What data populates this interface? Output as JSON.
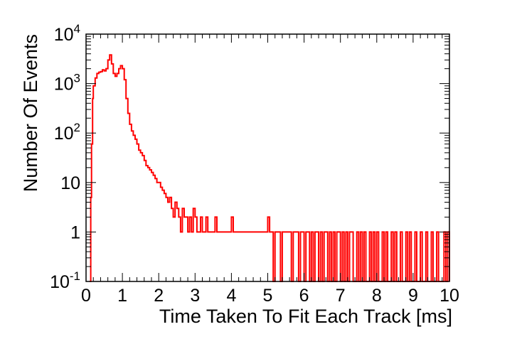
{
  "chart_data": {
    "type": "histogram",
    "title": "",
    "xlabel": "Time Taken To Fit Each Track [ms]",
    "ylabel": "Number Of Events",
    "xlim": [
      0,
      10
    ],
    "ylim": [
      0.1,
      10000
    ],
    "yscale": "log",
    "grid": false,
    "legend": "none",
    "line_color": "#ff0000",
    "x_ticks": [
      {
        "value": 0,
        "label": "0"
      },
      {
        "value": 1,
        "label": "1"
      },
      {
        "value": 2,
        "label": "2"
      },
      {
        "value": 3,
        "label": "3"
      },
      {
        "value": 4,
        "label": "4"
      },
      {
        "value": 5,
        "label": "5"
      },
      {
        "value": 6,
        "label": "6"
      },
      {
        "value": 7,
        "label": "7"
      },
      {
        "value": 8,
        "label": "8"
      },
      {
        "value": 9,
        "label": "9"
      },
      {
        "value": 10,
        "label": "10"
      }
    ],
    "y_ticks": [
      {
        "value": 0.1,
        "base": "10",
        "exp": "-1"
      },
      {
        "value": 1,
        "base": "1",
        "exp": ""
      },
      {
        "value": 10,
        "base": "10",
        "exp": ""
      },
      {
        "value": 100,
        "base": "10",
        "exp": "2"
      },
      {
        "value": 1000,
        "base": "10",
        "exp": "3"
      },
      {
        "value": 10000,
        "base": "10",
        "exp": "4"
      }
    ],
    "series": [
      {
        "x": [
          0.1,
          0.13,
          0.15,
          0.18,
          0.2,
          0.25,
          0.3,
          0.35,
          0.4,
          0.45,
          0.5,
          0.55,
          0.6,
          0.65,
          0.7,
          0.75,
          0.8,
          0.85,
          0.9,
          0.95,
          1.0,
          1.05,
          1.1,
          1.15,
          1.2,
          1.25,
          1.3,
          1.35,
          1.4,
          1.45,
          1.5,
          1.55,
          1.6,
          1.65,
          1.7,
          1.75,
          1.8,
          1.85,
          1.9,
          1.95,
          2.0,
          2.05,
          2.1,
          2.15,
          2.2,
          2.25,
          2.3,
          2.35,
          2.4,
          2.45,
          2.5,
          2.55,
          2.6,
          2.65,
          2.7,
          2.75,
          2.8,
          2.85,
          2.9,
          2.95,
          3.0,
          3.05,
          3.1,
          3.15,
          3.2,
          3.25,
          3.3,
          3.35,
          3.4,
          3.45,
          3.5,
          3.55,
          3.6,
          3.65,
          3.7,
          3.75,
          3.8,
          3.85,
          3.9,
          3.95,
          4.0,
          4.05,
          4.1,
          4.15,
          4.2,
          4.25,
          4.3,
          4.35,
          4.4,
          4.45,
          4.5,
          4.55,
          4.6,
          4.65,
          4.7,
          4.75,
          4.8,
          4.85,
          4.9,
          4.95,
          5.0,
          5.05,
          5.1,
          5.15,
          5.2,
          5.25,
          5.3,
          5.35,
          5.4,
          5.45,
          5.5,
          5.55,
          5.6,
          5.65,
          5.7,
          5.75,
          5.8,
          5.85,
          5.9,
          5.95,
          6.0,
          6.05,
          6.1,
          6.15,
          6.2,
          6.25,
          6.3,
          6.35,
          6.4,
          6.45,
          6.5,
          6.55,
          6.6,
          6.65,
          6.7,
          6.75,
          6.8,
          6.85,
          6.9,
          6.95,
          7.0,
          7.05,
          7.1,
          7.15,
          7.2,
          7.25,
          7.3,
          7.35,
          7.4,
          7.45,
          7.5,
          7.55,
          7.6,
          7.65,
          7.7,
          7.75,
          7.8,
          7.85,
          7.9,
          7.95,
          8.0,
          8.05,
          8.1,
          8.15,
          8.2,
          8.25,
          8.3,
          8.35,
          8.4,
          8.45,
          8.5,
          8.55,
          8.6,
          8.65,
          8.7,
          8.75,
          8.8,
          8.85,
          8.9,
          8.95,
          9.0,
          9.05,
          9.1,
          9.15,
          9.2,
          9.25,
          9.3,
          9.35,
          9.4,
          9.45,
          9.5,
          9.55,
          9.6,
          9.65,
          9.7,
          9.75,
          9.8,
          9.85,
          9.9,
          9.95
        ],
        "y": [
          0.1,
          5,
          60,
          500,
          900,
          1300,
          1600,
          1700,
          1750,
          1900,
          1800,
          2000,
          3000,
          3800,
          2500,
          1600,
          1400,
          1600,
          2000,
          2300,
          2000,
          1200,
          500,
          250,
          150,
          110,
          90,
          75,
          60,
          45,
          40,
          35,
          28,
          22,
          20,
          18,
          16,
          14,
          12,
          10,
          10,
          8,
          7,
          6,
          5,
          4,
          5,
          3,
          2,
          4,
          3,
          2,
          1,
          3,
          2,
          2,
          1,
          2,
          1,
          3,
          2,
          1,
          1,
          2,
          1,
          1,
          2,
          1,
          1,
          1,
          1,
          2,
          1,
          1,
          1,
          1,
          1,
          1,
          1,
          1,
          2,
          1,
          1,
          1,
          1,
          1,
          1,
          1,
          1,
          1,
          1,
          1,
          1,
          1,
          1,
          1,
          1,
          1,
          1,
          1,
          2,
          1,
          1,
          0.1,
          1,
          1,
          1,
          0.1,
          1,
          1,
          1,
          1,
          1,
          0.1,
          1,
          1,
          1,
          0.1,
          1,
          1,
          0.1,
          1,
          1,
          0.1,
          1,
          0.1,
          1,
          1,
          0.1,
          1,
          0.1,
          1,
          1,
          0.1,
          1,
          0.1,
          1,
          0.1,
          1,
          1,
          0.1,
          1,
          0.1,
          1,
          0.1,
          1,
          1,
          0.1,
          0.1,
          1,
          0.1,
          1,
          0.1,
          1,
          0.1,
          0.1,
          1,
          0.1,
          1,
          0.1,
          1,
          0.1,
          0.1,
          1,
          0.1,
          1,
          0.1,
          0.1,
          1,
          0.1,
          1,
          0.1,
          0.1,
          1,
          0.1,
          0.1,
          1,
          0.1,
          1,
          0.1,
          0.1,
          1,
          0.1,
          0.1,
          1,
          0.1,
          0.1,
          1,
          0.1,
          0.1,
          1,
          0.1,
          0.1,
          1,
          0.1,
          0.1,
          0.1,
          1,
          0.1,
          1
        ]
      }
    ]
  }
}
